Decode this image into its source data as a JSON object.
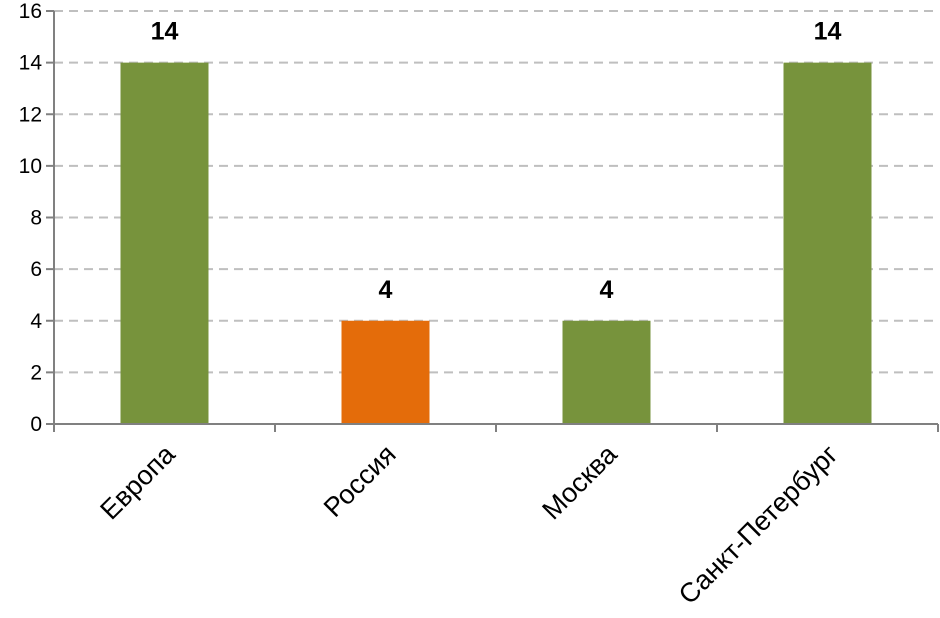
{
  "chart_data": {
    "type": "bar",
    "categories": [
      "Европа",
      "Россия",
      "Москва",
      "Санкт-Петербург"
    ],
    "values": [
      14,
      4,
      4,
      14
    ],
    "data_labels": [
      "14",
      "4",
      "4",
      "14"
    ],
    "bar_colors": [
      "#77933C",
      "#E46C0A",
      "#77933C",
      "#77933C"
    ],
    "ylim": [
      0,
      16
    ],
    "yticks": [
      0,
      2,
      4,
      6,
      8,
      10,
      12,
      14,
      16
    ],
    "ytick_labels": [
      "0",
      "2",
      "4",
      "6",
      "8",
      "10",
      "12",
      "14",
      "16"
    ],
    "title": "",
    "xlabel": "",
    "ylabel": "",
    "grid": "horizontal dashed",
    "legend": "none"
  },
  "colors": {
    "gridline": "#BFBFBF",
    "axis": "#808080",
    "text": "#000000"
  }
}
